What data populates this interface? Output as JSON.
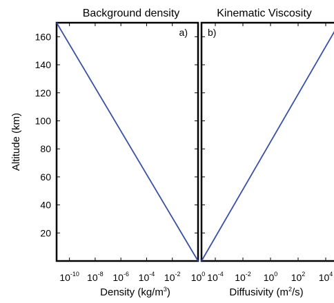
{
  "chart_data": [
    {
      "type": "line",
      "panel_label": "a)",
      "title": "Background density",
      "xlabel": "Density (kg/m",
      "xlabel_sup": "3",
      "xlabel_tail": ")",
      "ylabel": "Altitude (km)",
      "x_scale": "log",
      "x_ticks": [
        {
          "base": "10",
          "exp": "-10",
          "value": 1e-10
        },
        {
          "base": "10",
          "exp": "-8",
          "value": 1e-08
        },
        {
          "base": "10",
          "exp": "-6",
          "value": 1e-06
        },
        {
          "base": "10",
          "exp": "-4",
          "value": 0.0001
        },
        {
          "base": "10",
          "exp": "-2",
          "value": 0.01
        },
        {
          "base": "10",
          "exp": "0",
          "value": 1
        }
      ],
      "y_ticks": [
        "20",
        "40",
        "60",
        "80",
        "100",
        "120",
        "140",
        "160"
      ],
      "ylim": [
        0,
        170
      ],
      "xlim": [
        1e-11,
        1
      ],
      "series": [
        {
          "x": [
            1e-11,
            1
          ],
          "y": [
            170,
            0
          ],
          "color": "#3b4fa3"
        }
      ]
    },
    {
      "type": "line",
      "panel_label": "b)",
      "title": "Kinematic Viscosity",
      "xlabel": "Diffusivity (m",
      "xlabel_sup": "2",
      "xlabel_tail": "/s)",
      "x_scale": "log",
      "x_ticks": [
        {
          "base": "10",
          "exp": "-4",
          "value": 0.0001
        },
        {
          "base": "10",
          "exp": "-2",
          "value": 0.01
        },
        {
          "base": "10",
          "exp": "0",
          "value": 1
        },
        {
          "base": "10",
          "exp": "2",
          "value": 100.0
        },
        {
          "base": "10",
          "exp": "4",
          "value": 10000.0
        }
      ],
      "ylim": [
        0,
        170
      ],
      "xlim": [
        1e-05,
        100000.0
      ],
      "series": [
        {
          "x": [
            1e-05,
            100000.0
          ],
          "y": [
            0,
            170
          ],
          "color": "#3b4fa3"
        }
      ]
    }
  ]
}
